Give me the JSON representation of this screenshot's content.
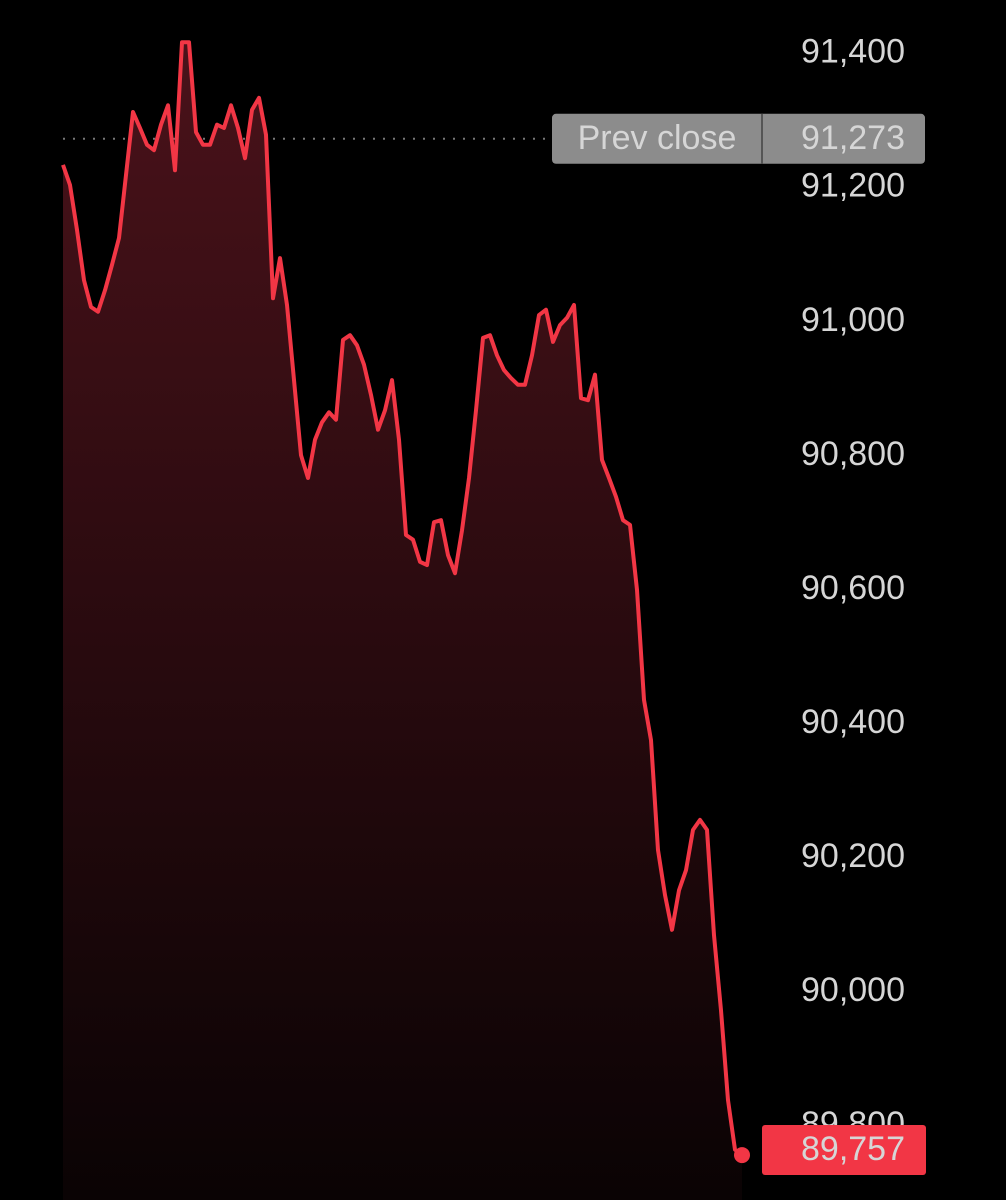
{
  "chart_data": {
    "type": "area",
    "values": [
      91234,
      91204,
      91137,
      91062,
      91022,
      91015,
      91047,
      91085,
      91125,
      91219,
      91313,
      91289,
      91264,
      91256,
      91294,
      91323,
      91226,
      91417,
      91417,
      91283,
      91264,
      91264,
      91294,
      91289,
      91323,
      91289,
      91244,
      91316,
      91334,
      91279,
      91035,
      91095,
      91025,
      90913,
      90801,
      90767,
      90824,
      90850,
      90865,
      90854,
      90973,
      90980,
      90965,
      90936,
      90891,
      90839,
      90868,
      90913,
      90824,
      90682,
      90675,
      90642,
      90637,
      90701,
      90704,
      90652,
      90625,
      90689,
      90767,
      90868,
      90976,
      90980,
      90950,
      90928,
      90916,
      90906,
      90906,
      90950,
      91010,
      91018,
      90970,
      90995,
      91006,
      91025,
      90886,
      90883,
      90921,
      90794,
      90767,
      90739,
      90704,
      90697,
      90600,
      90436,
      90376,
      90212,
      90145,
      90093,
      90152,
      90182,
      90242,
      90257,
      90242,
      90085,
      89973,
      89839,
      89765,
      89757
    ],
    "color": "#f23645",
    "last_label": "89,757",
    "reference_line": {
      "name": "Prev close",
      "value": 91273,
      "label": "91,273"
    },
    "ylim": [
      89690,
      91480
    ],
    "yticks": [
      {
        "value": 91400,
        "label": "91,400"
      },
      {
        "value": 91200,
        "label": "91,200"
      },
      {
        "value": 91000,
        "label": "91,000"
      },
      {
        "value": 90800,
        "label": "90,800"
      },
      {
        "value": 90600,
        "label": "90,600"
      },
      {
        "value": 90400,
        "label": "90,400"
      },
      {
        "value": 90200,
        "label": "90,200"
      },
      {
        "value": 90000,
        "label": "90,000"
      },
      {
        "value": 89800,
        "label": "89,800"
      }
    ],
    "grid": false
  }
}
